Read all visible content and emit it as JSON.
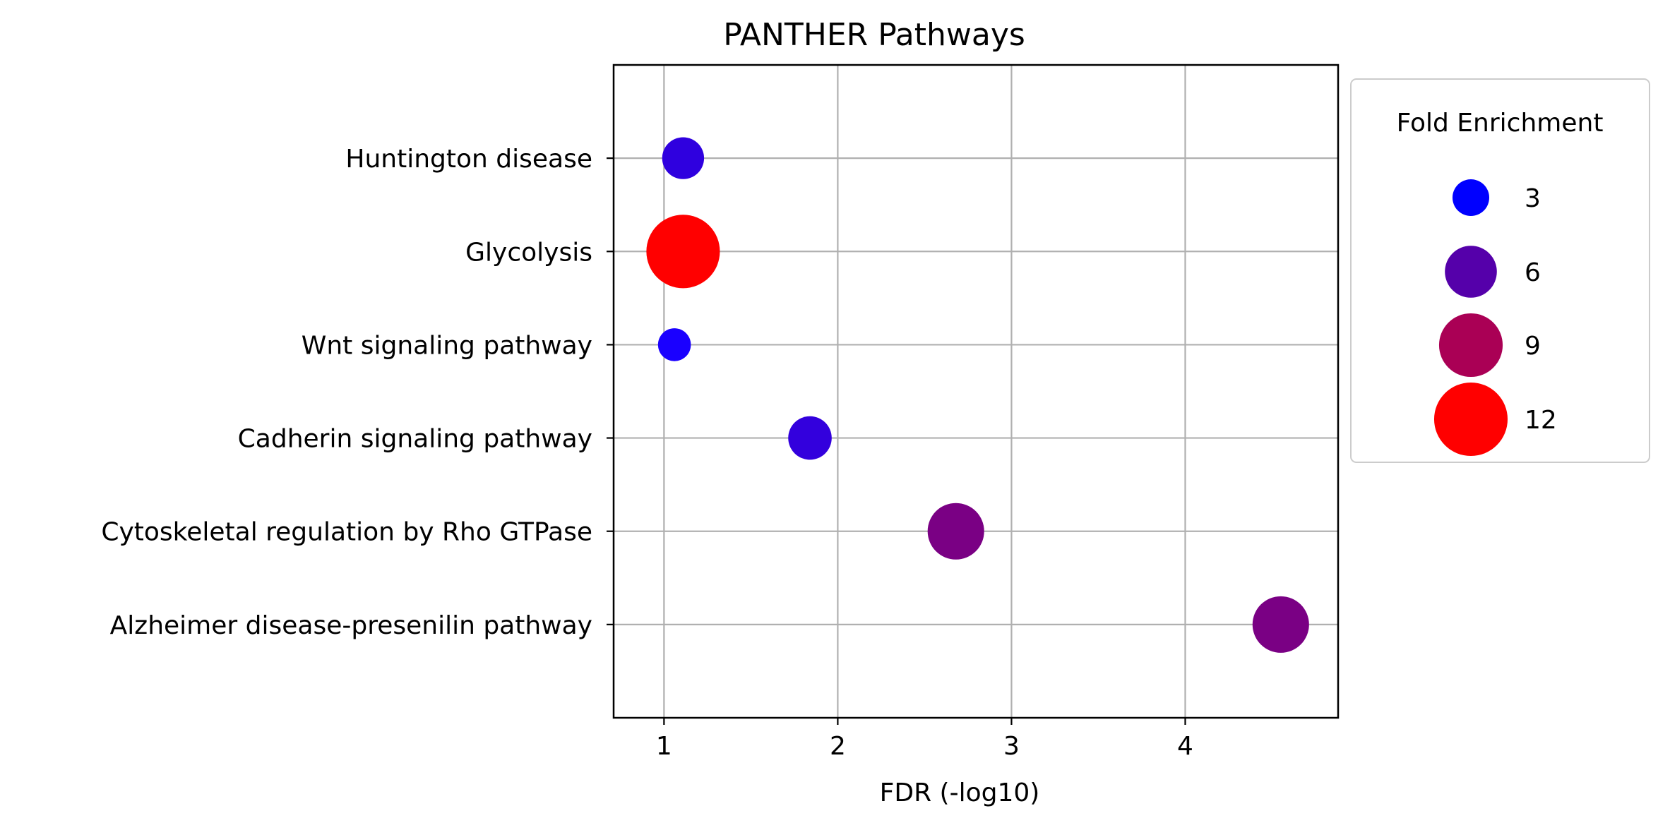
{
  "chart_data": {
    "type": "scatter",
    "title": "PANTHER Pathways",
    "xlabel": "FDR (-log10)",
    "ylabel": "",
    "xlim": [
      0.71,
      4.88
    ],
    "xticks": [
      1,
      2,
      3,
      4
    ],
    "xtick_labels": [
      "1",
      "2",
      "3",
      "4"
    ],
    "grid": true,
    "categories": [
      "Huntington disease",
      "Glycolysis",
      "Wnt signaling pathway",
      "Cadherin signaling pathway",
      "Cytoskeletal regulation by Rho GTPase",
      "Alzheimer disease-presenilin pathway"
    ],
    "points": [
      {
        "category": "Huntington disease",
        "x": 1.11,
        "fold_enrichment": 3.9,
        "color": "#2f00df"
      },
      {
        "category": "Glycolysis",
        "x": 1.11,
        "fold_enrichment": 12.0,
        "color": "#ff0000"
      },
      {
        "category": "Wnt signaling pathway",
        "x": 1.06,
        "fold_enrichment": 2.4,
        "color": "#1a00ff"
      },
      {
        "category": "Cadherin signaling pathway",
        "x": 1.84,
        "fold_enrichment": 4.2,
        "color": "#3300dd"
      },
      {
        "category": "Cytoskeletal regulation by Rho GTPase",
        "x": 2.68,
        "fold_enrichment": 7.1,
        "color": "#7a0084"
      },
      {
        "category": "Alzheimer disease-presenilin pathway",
        "x": 4.55,
        "fold_enrichment": 7.1,
        "color": "#7a0084"
      }
    ],
    "legend": {
      "title": "Fold Enrichment",
      "placement": "outside-right",
      "entries": [
        {
          "label": "3",
          "value": 3,
          "color": "#0000ff"
        },
        {
          "label": "6",
          "value": 6,
          "color": "#5500aa"
        },
        {
          "label": "9",
          "value": 9,
          "color": "#aa0055"
        },
        {
          "label": "12",
          "value": 12,
          "color": "#ff0000"
        }
      ]
    }
  }
}
